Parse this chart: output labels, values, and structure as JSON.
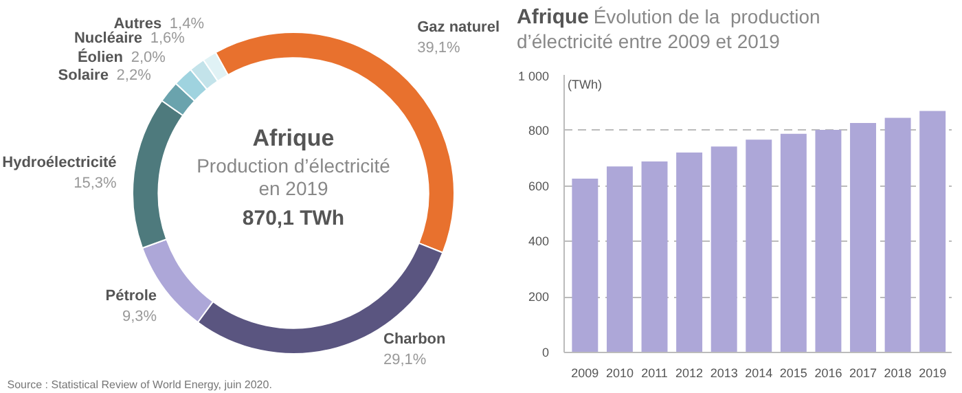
{
  "chart_data": [
    {
      "type": "donut",
      "title": "Afrique",
      "subtitle": "Production d’électricité en 2019",
      "annotations": [
        "870,1 TWh",
        "Source : Statistical Review of World Energy, juin 2020."
      ],
      "categories": [
        "Gaz naturel",
        "Charbon",
        "Pétrole",
        "Hydroélectricité",
        "Solaire",
        "Éolien",
        "Nucléaire",
        "Autres"
      ],
      "values": [
        39.1,
        29.1,
        9.3,
        15.3,
        2.2,
        2.0,
        1.6,
        1.4
      ],
      "value_labels": [
        "39,1%",
        "29,1%",
        "9,3%",
        "15,3%",
        "2,2%",
        "2,0%",
        "1,6%",
        "1,4%"
      ],
      "colors": [
        "#e8712e",
        "#5a5580",
        "#ada7d8",
        "#4e7a7d",
        "#6aa3ad",
        "#9fd3df",
        "#c3e3ea",
        "#e0f2f5"
      ]
    },
    {
      "type": "bar",
      "title": "Afrique",
      "subtitle": "Évolution de la  production d’électricité entre 2009 et 2019",
      "ylabel": "(TWh)",
      "categories": [
        "2009",
        "2010",
        "2011",
        "2012",
        "2013",
        "2014",
        "2015",
        "2016",
        "2017",
        "2018",
        "2019"
      ],
      "series": [
        {
          "color": "#ada7d8",
          "values": [
            626,
            670,
            688,
            720,
            742,
            767,
            788,
            802,
            827,
            845,
            870
          ]
        }
      ],
      "ylim": [
        0,
        1000
      ],
      "yticks": [
        0,
        200,
        400,
        600,
        800,
        {
          "value": 1000,
          "label": "1 000"
        }
      ],
      "grid": "y"
    }
  ]
}
